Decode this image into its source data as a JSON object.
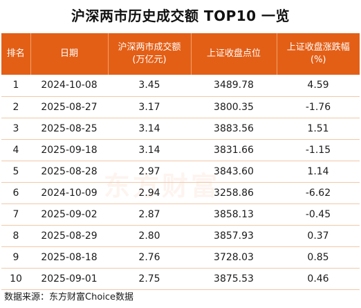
{
  "title": "沪深两市历史成交额 TOP10 一览",
  "chart_data": {
    "type": "table",
    "title": "沪深两市历史成交额 TOP10 一览",
    "columns": [
      "排名",
      "日期",
      "沪深两市成交额\n(万亿元)",
      "上证收盘点位",
      "上证收盘涨跌幅\n(%)"
    ],
    "rows": [
      [
        "1",
        "2024-10-08",
        "3.45",
        "3489.78",
        "4.59"
      ],
      [
        "2",
        "2025-08-27",
        "3.17",
        "3800.35",
        "-1.76"
      ],
      [
        "3",
        "2025-08-25",
        "3.14",
        "3883.56",
        "1.51"
      ],
      [
        "4",
        "2025-09-18",
        "3.14",
        "3831.66",
        "-1.15"
      ],
      [
        "5",
        "2025-08-28",
        "2.97",
        "3843.60",
        "1.14"
      ],
      [
        "6",
        "2024-10-09",
        "2.94",
        "3258.86",
        "-6.62"
      ],
      [
        "7",
        "2025-09-02",
        "2.87",
        "3858.13",
        "-0.45"
      ],
      [
        "8",
        "2025-08-29",
        "2.80",
        "3857.93",
        "0.37"
      ],
      [
        "9",
        "2025-08-18",
        "2.76",
        "3728.03",
        "0.85"
      ],
      [
        "10",
        "2025-09-01",
        "2.75",
        "3875.53",
        "0.46"
      ]
    ]
  },
  "header": {
    "rank": "排名",
    "date": "日期",
    "volume_line1": "沪深两市成交额",
    "volume_line2": "(万亿元)",
    "close": "上证收盘点位",
    "change_line1": "上证收盘涨跌幅",
    "change_line2": "(%)"
  },
  "watermark": "东方财富",
  "source": "数据来源：东方财富Choice数据",
  "colors": {
    "header_bg": "#e35f16",
    "header_text": "#ffffff",
    "row_divider": "#f0c8a8"
  }
}
